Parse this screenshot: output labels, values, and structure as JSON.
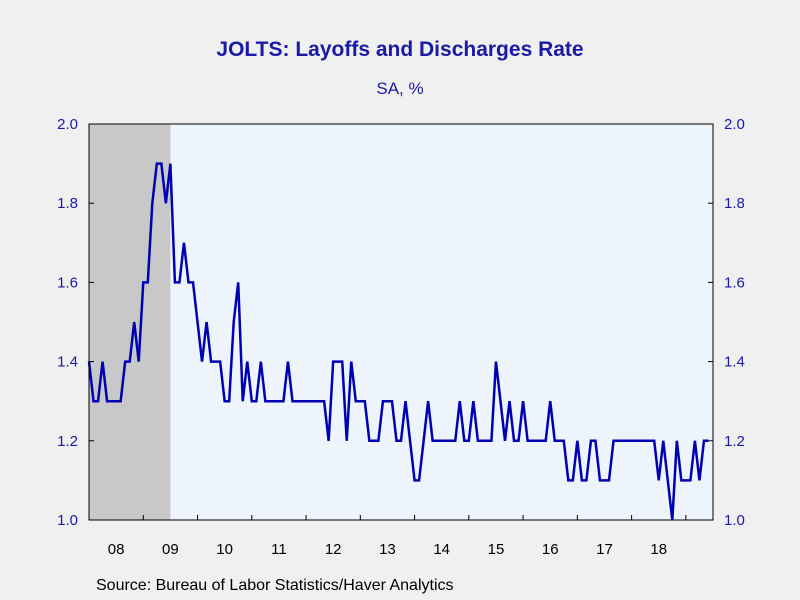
{
  "chart_data": {
    "type": "line",
    "title": "JOLTS: Layoffs and Discharges Rate",
    "subtitle": "SA, %",
    "source": "Source:  Bureau of Labor Statistics/Haver Analytics",
    "xlabel": "",
    "ylabel": "",
    "ylim": [
      1.0,
      2.0
    ],
    "y_ticks": [
      "1.0",
      "1.2",
      "1.4",
      "1.6",
      "1.8",
      "2.0"
    ],
    "x_tick_labels": [
      "08",
      "09",
      "10",
      "11",
      "12",
      "13",
      "14",
      "15",
      "16",
      "17",
      "18"
    ],
    "x_start": "2008-01",
    "recession": {
      "start": "2008-01",
      "end": "2009-06"
    },
    "grid": false,
    "legend": "none",
    "colors": {
      "line": "#0000b4",
      "text": "#1a1aa6",
      "plot_bg": "#eef4fb",
      "recession": "#c8c8c8",
      "page_bg": "#f0f0f0"
    },
    "series": [
      {
        "values": [
          1.4,
          1.3,
          1.3,
          1.4,
          1.3,
          1.3,
          1.3,
          1.3,
          1.4,
          1.4,
          1.5,
          1.4,
          1.6,
          1.6,
          1.8,
          1.9,
          1.9,
          1.8,
          1.9,
          1.6,
          1.6,
          1.7,
          1.6,
          1.6,
          1.5,
          1.4,
          1.5,
          1.4,
          1.4,
          1.4,
          1.3,
          1.3,
          1.5,
          1.6,
          1.3,
          1.4,
          1.3,
          1.3,
          1.4,
          1.3,
          1.3,
          1.3,
          1.3,
          1.3,
          1.4,
          1.3,
          1.3,
          1.3,
          1.3,
          1.3,
          1.3,
          1.3,
          1.3,
          1.2,
          1.4,
          1.4,
          1.4,
          1.2,
          1.4,
          1.3,
          1.3,
          1.3,
          1.2,
          1.2,
          1.2,
          1.3,
          1.3,
          1.3,
          1.2,
          1.2,
          1.3,
          1.2,
          1.1,
          1.1,
          1.2,
          1.3,
          1.2,
          1.2,
          1.2,
          1.2,
          1.2,
          1.2,
          1.3,
          1.2,
          1.2,
          1.3,
          1.2,
          1.2,
          1.2,
          1.2,
          1.4,
          1.3,
          1.2,
          1.3,
          1.2,
          1.2,
          1.3,
          1.2,
          1.2,
          1.2,
          1.2,
          1.2,
          1.3,
          1.2,
          1.2,
          1.2,
          1.1,
          1.1,
          1.2,
          1.1,
          1.1,
          1.2,
          1.2,
          1.1,
          1.1,
          1.1,
          1.2,
          1.2,
          1.2,
          1.2,
          1.2,
          1.2,
          1.2,
          1.2,
          1.2,
          1.2,
          1.1,
          1.2,
          1.1,
          1.0,
          1.2,
          1.1,
          1.1,
          1.1,
          1.2,
          1.1,
          1.2,
          1.2
        ]
      }
    ]
  }
}
